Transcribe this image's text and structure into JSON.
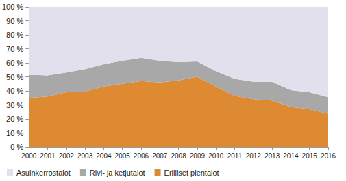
{
  "chart_data": {
    "type": "area",
    "stacked": true,
    "grid": false,
    "legend": "bottom-left",
    "categories": [
      "2000",
      "2001",
      "2002",
      "2003",
      "2004",
      "2005",
      "2006",
      "2007",
      "2008",
      "2009",
      "2010",
      "2011",
      "2012",
      "2013",
      "2014",
      "2015",
      "2016"
    ],
    "series": [
      {
        "name": "Asuinkerrostalot",
        "color": "#e3e0ee",
        "values": [
          48.5,
          49,
          47,
          44.5,
          41,
          38.5,
          36.5,
          38.5,
          39.5,
          39,
          46,
          51.5,
          53.5,
          53.5,
          59.5,
          61,
          64.5
        ]
      },
      {
        "name": "Rivi- ja ketjutalot",
        "color": "#a8a8a8",
        "values": [
          16.5,
          15,
          14,
          16,
          16,
          16.5,
          16.5,
          15.5,
          13,
          11,
          11,
          12,
          12.5,
          13.5,
          12,
          12,
          12
        ]
      },
      {
        "name": "Erilliset pientalot",
        "color": "#de8a33",
        "values": [
          35,
          36,
          39,
          39.5,
          43,
          45,
          47,
          46,
          47.5,
          50,
          43,
          36.5,
          34,
          33,
          28.5,
          27,
          23.5
        ]
      }
    ],
    "ylim": [
      0,
      100
    ],
    "yticks": [
      {
        "value": 0,
        "label": "0 %"
      },
      {
        "value": 10,
        "label": "10 %"
      },
      {
        "value": 20,
        "label": "20 %"
      },
      {
        "value": 30,
        "label": "30 %"
      },
      {
        "value": 40,
        "label": "40 %"
      },
      {
        "value": 50,
        "label": "50 %"
      },
      {
        "value": 60,
        "label": "60 %"
      },
      {
        "value": 70,
        "label": "70 %"
      },
      {
        "value": 80,
        "label": "80 %"
      },
      {
        "value": 90,
        "label": "90 %"
      },
      {
        "value": 100,
        "label": "100 %"
      }
    ]
  }
}
